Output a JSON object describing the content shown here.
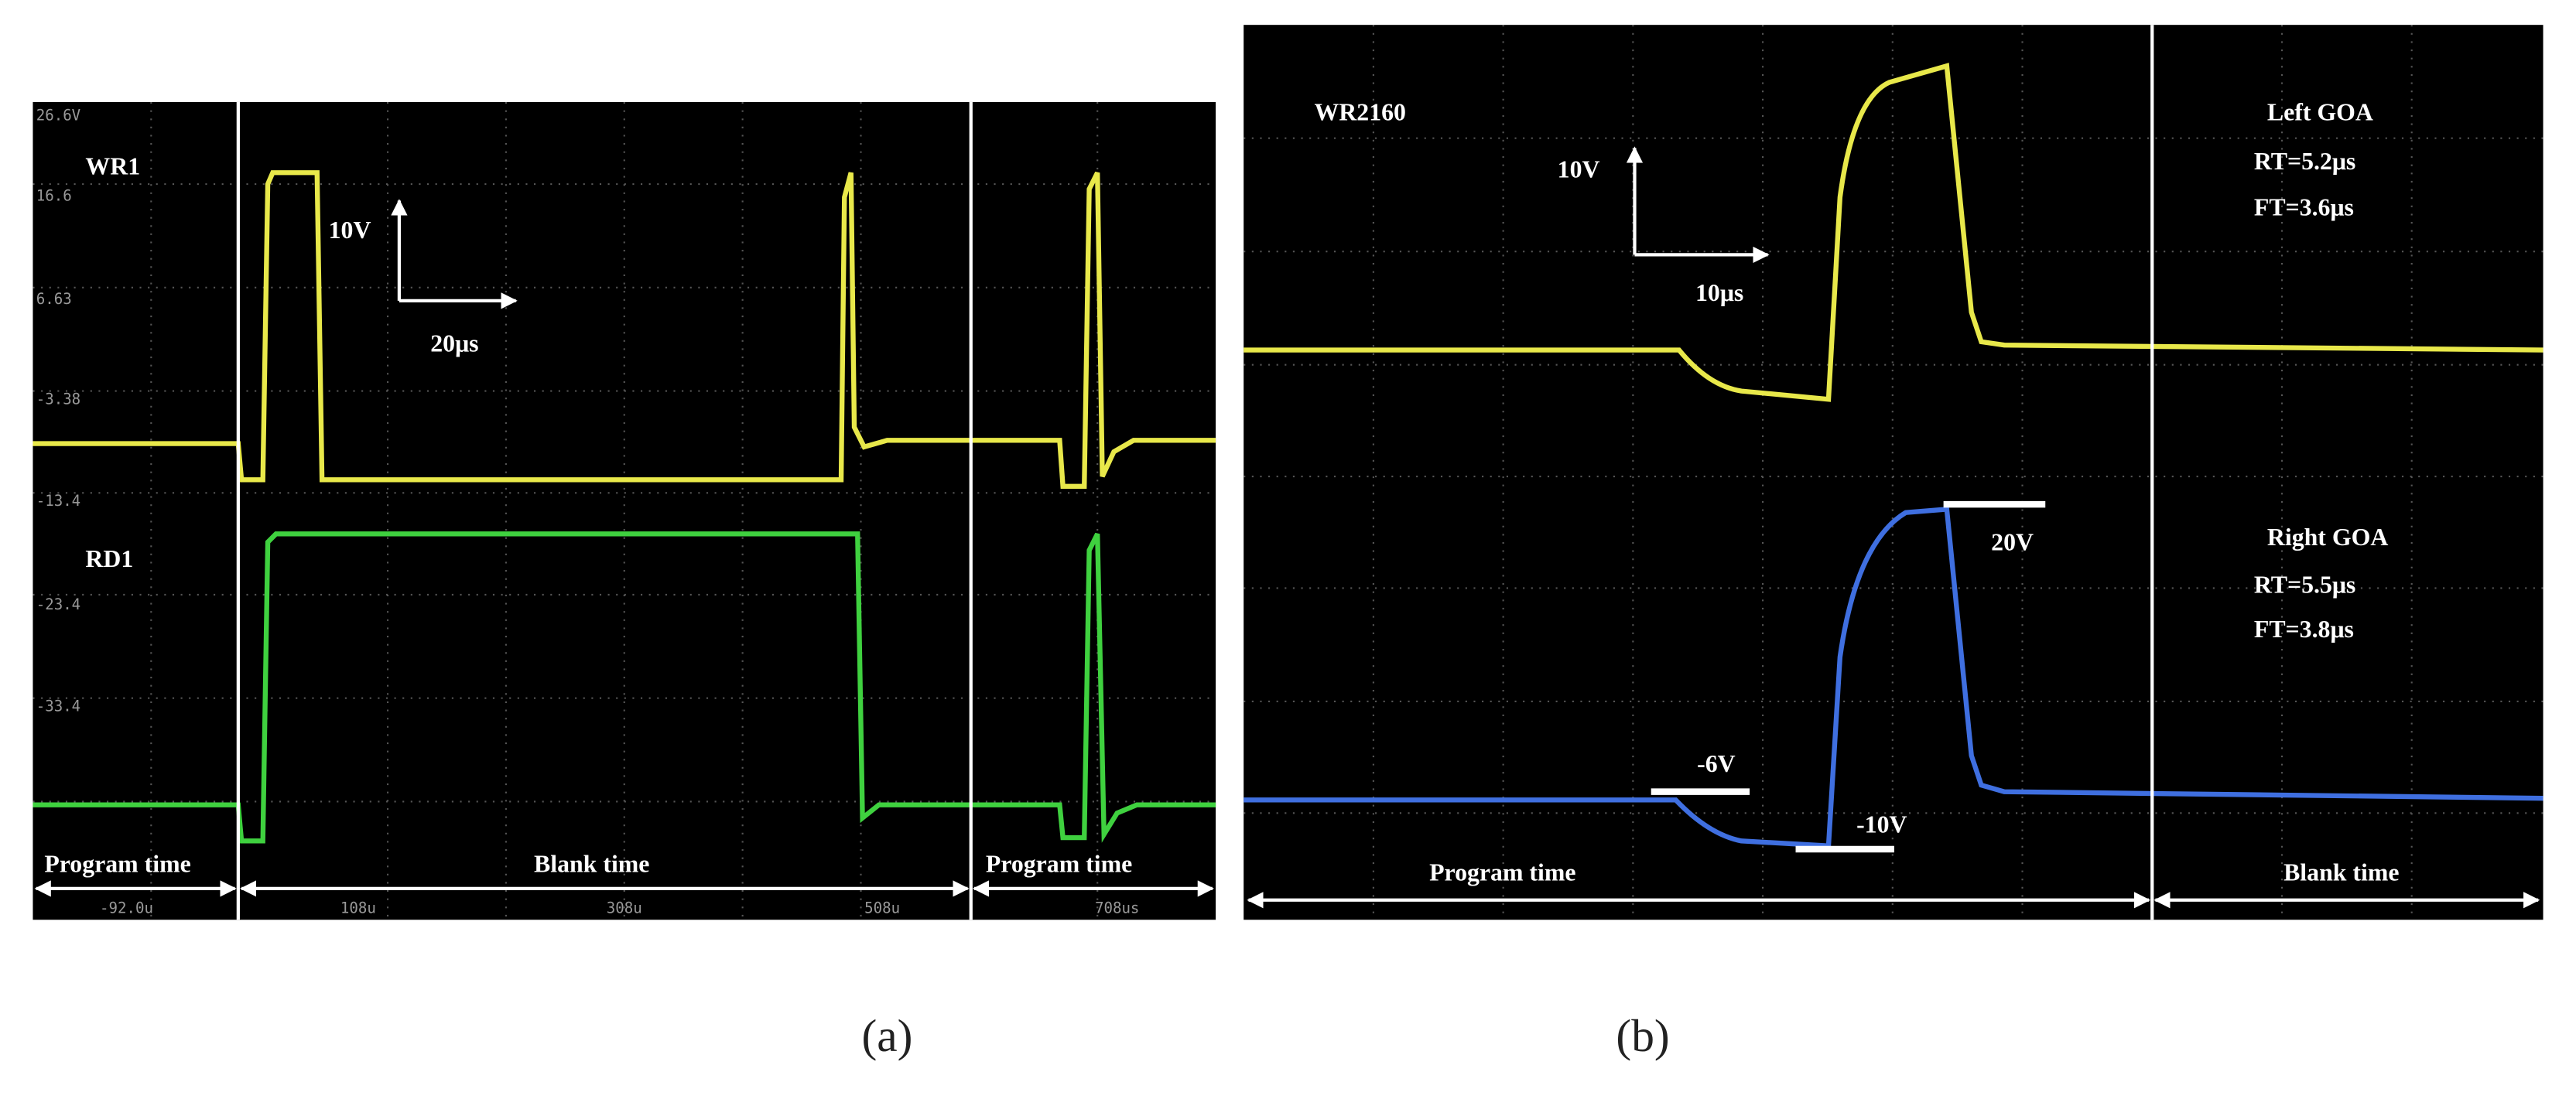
{
  "panel_a": {
    "channels": [
      "WR1",
      "RD1"
    ],
    "scale": {
      "voltage": "10V",
      "time": "20μs"
    },
    "y_labels": [
      "26.6V",
      "16.6",
      "6.63",
      "-3.38",
      "-13.4",
      "-23.4",
      "-33.4"
    ],
    "x_labels": [
      "-92.0u",
      "108u",
      "308u",
      "508u",
      "708us"
    ],
    "regions": [
      "Program time",
      "Blank time",
      "Program time"
    ],
    "caption": "(a)"
  },
  "panel_b": {
    "channel": "WR2160",
    "scale": {
      "voltage": "10V",
      "time": "10μs"
    },
    "left": {
      "name": "Left GOA",
      "rt": "RT=5.2μs",
      "ft": "FT=3.6μs"
    },
    "right": {
      "name": "Right GOA",
      "rt": "RT=5.5μs",
      "ft": "FT=3.8μs"
    },
    "levels": [
      "20V",
      "-6V",
      "-10V"
    ],
    "regions": [
      "Program time",
      "Blank time"
    ],
    "caption": "(b)"
  }
}
